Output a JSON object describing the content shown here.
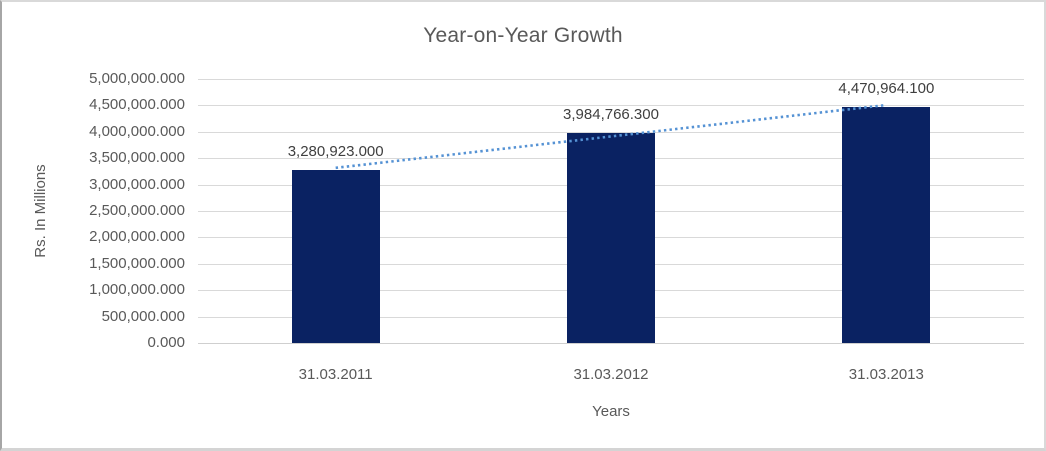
{
  "chart_data": {
    "type": "bar",
    "title": "Year-on-Year Growth",
    "xlabel": "Years",
    "ylabel": "Rs. In Millions",
    "categories": [
      "31.03.2011",
      "31.03.2012",
      "31.03.2013"
    ],
    "values": [
      3280923.0,
      3984766.3,
      4470964.1
    ],
    "data_labels": [
      "3,280,923.000",
      "3,984,766.300",
      "4,470,964.100"
    ],
    "y_tick_labels": [
      "5,000,000.000",
      "4,500,000.000",
      "4,000,000.000",
      "3,500,000.000",
      "3,000,000.000",
      "2,500,000.000",
      "2,000,000.000",
      "1,500,000.000",
      "1,000,000.000",
      "500,000.000",
      "0.000"
    ],
    "ylim": [
      0,
      5000000
    ],
    "y_tick_step": 500000,
    "grid": "horizontal",
    "legend": "none",
    "trendline": {
      "kind": "linear-dotted"
    },
    "colors": {
      "bar": "#0a2262",
      "trendline": "#5592d4",
      "gridline": "#d9d9d9",
      "title_text": "#595959",
      "axis_text": "#595959",
      "data_label_text": "#3f3f3f"
    }
  }
}
